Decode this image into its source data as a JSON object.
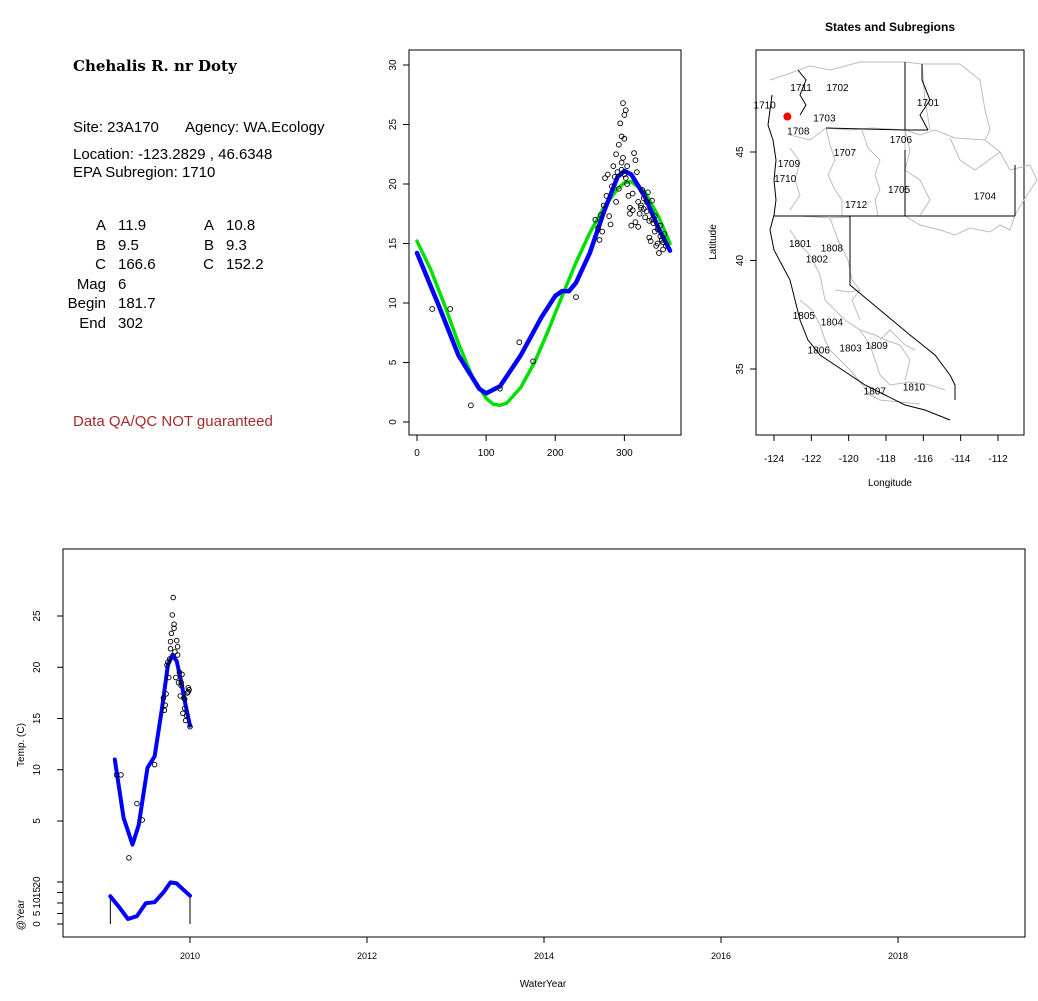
{
  "info": {
    "title": "Chehalis R. nr Doty",
    "site_line": "Site: 23A170",
    "agency_line": "Agency: WA.Ecology",
    "location_line": "Location: -123.2829 , 46.6348",
    "subregion_line": "EPA Subregion: 1710",
    "params": [
      {
        "k1": "A",
        "v1": "11.9",
        "k2": "A",
        "v2": "10.8"
      },
      {
        "k1": "B",
        "v1": "9.5",
        "k2": "B",
        "v2": "9.3"
      },
      {
        "k1": "C",
        "v1": "166.6",
        "k2": "C",
        "v2": "152.2"
      },
      {
        "k1": "Mag",
        "v1": "6",
        "k2": "",
        "v2": ""
      },
      {
        "k1": "Begin",
        "v1": "181.7",
        "k2": "",
        "v2": ""
      },
      {
        "k1": "End",
        "v1": "302",
        "k2": "",
        "v2": ""
      }
    ],
    "qa_note": "Data QA/QC NOT guaranteed"
  },
  "colors": {
    "blue": "#0000ff",
    "green": "#00e000",
    "red": "#ff0000",
    "qa": "#a52a2a",
    "boundary": "#bdbdbd"
  },
  "chart_data": [
    {
      "id": "seasonal",
      "type": "scatter",
      "xlim": [
        0,
        366
      ],
      "ylim": [
        0,
        30
      ],
      "xticks": [
        0,
        100,
        200,
        300
      ],
      "yticks": [
        0,
        5,
        10,
        15,
        20,
        25,
        30
      ],
      "points_x": [
        22,
        48,
        78,
        120,
        148,
        168,
        230,
        258,
        262,
        264,
        266,
        268,
        270,
        272,
        274,
        276,
        278,
        280,
        282,
        284,
        286,
        288,
        290,
        292,
        294,
        296,
        298,
        300,
        302,
        304,
        306,
        308,
        310,
        312,
        314,
        316,
        318,
        320,
        322,
        324,
        326,
        328,
        330,
        332,
        334,
        336,
        338,
        340,
        342,
        344,
        346,
        348,
        350,
        352,
        354,
        356,
        358,
        360,
        288,
        292,
        296,
        300,
        304,
        308,
        312,
        316,
        320,
        324,
        328,
        332,
        336,
        340,
        344,
        348,
        352,
        356,
        296,
        298,
        300,
        302
      ],
      "points_y": [
        9.5,
        9.5,
        1.4,
        2.8,
        6.7,
        5.1,
        10.5,
        17.0,
        16.3,
        15.3,
        17.4,
        16.0,
        18.2,
        20.5,
        19.0,
        20.8,
        17.3,
        16.6,
        19.8,
        21.5,
        20.6,
        22.5,
        21.0,
        23.3,
        25.1,
        24.0,
        26.8,
        23.8,
        20.5,
        21.5,
        19.0,
        17.5,
        16.5,
        19.2,
        22.6,
        22.0,
        21.0,
        18.5,
        17.5,
        18.0,
        19.5,
        18.8,
        17.2,
        18.5,
        19.3,
        15.5,
        15.2,
        17.0,
        16.7,
        16.0,
        14.8,
        15.0,
        14.2,
        16.5,
        15.3,
        14.5,
        15.8,
        14.8,
        18.5,
        19.6,
        21.8,
        20.8,
        20.0,
        18.0,
        17.8,
        16.8,
        16.4,
        18.2,
        17.9,
        17.7,
        16.9,
        18.6,
        17.3,
        16.2,
        15.6,
        15.1,
        21.2,
        22.2,
        25.8,
        26.2
      ],
      "curve_blue": {
        "x": [
          0,
          30,
          60,
          90,
          100,
          120,
          150,
          180,
          200,
          210,
          220,
          230,
          250,
          270,
          290,
          300,
          310,
          330,
          350,
          366
        ],
        "y": [
          14.2,
          10.0,
          5.6,
          2.8,
          2.4,
          3.0,
          5.6,
          8.8,
          10.6,
          11.0,
          11.0,
          11.7,
          14.2,
          17.6,
          20.6,
          21.1,
          20.8,
          18.9,
          16.2,
          14.4
        ]
      },
      "curve_green": {
        "x": [
          0,
          20,
          40,
          60,
          80,
          100,
          110,
          120,
          130,
          150,
          170,
          190,
          210,
          230,
          250,
          270,
          290,
          300,
          310,
          330,
          350,
          366
        ],
        "y": [
          15.2,
          12.8,
          9.8,
          6.6,
          3.8,
          2.0,
          1.5,
          1.4,
          1.6,
          2.9,
          5.0,
          7.7,
          10.6,
          13.4,
          15.9,
          18.0,
          19.6,
          20.1,
          20.2,
          19.3,
          17.2,
          15.0
        ]
      }
    },
    {
      "id": "map",
      "type": "map",
      "title": "States and Subregions",
      "xlabel": "Longitude",
      "ylabel": "Latitude",
      "xlim": [
        -125.5,
        -110.5
      ],
      "ylim": [
        32.2,
        49.5
      ],
      "xticks": [
        -124,
        -122,
        -120,
        -118,
        -116,
        -114,
        -112
      ],
      "yticks": [
        35,
        40,
        45
      ],
      "site": {
        "lon": -123.2829,
        "lat": 46.6348
      },
      "labels": [
        {
          "text": "1711",
          "lon": -122.55,
          "lat": 48.0
        },
        {
          "text": "1702",
          "lon": -120.6,
          "lat": 48.0
        },
        {
          "text": "1701",
          "lon": -115.75,
          "lat": 47.3
        },
        {
          "text": "1710",
          "lon": -124.5,
          "lat": 47.2
        },
        {
          "text": "1703",
          "lon": -121.3,
          "lat": 46.6
        },
        {
          "text": "1708",
          "lon": -122.7,
          "lat": 46.0
        },
        {
          "text": "1706",
          "lon": -117.2,
          "lat": 45.6
        },
        {
          "text": "1707",
          "lon": -120.2,
          "lat": 45.0
        },
        {
          "text": "1709",
          "lon": -123.2,
          "lat": 44.5
        },
        {
          "text": "1710",
          "lon": -123.4,
          "lat": 43.8
        },
        {
          "text": "1705",
          "lon": -117.3,
          "lat": 43.3
        },
        {
          "text": "1704",
          "lon": -112.7,
          "lat": 43.0
        },
        {
          "text": "1712",
          "lon": -119.6,
          "lat": 42.6
        },
        {
          "text": "1801",
          "lon": -122.6,
          "lat": 40.8
        },
        {
          "text": "1808",
          "lon": -120.9,
          "lat": 40.6
        },
        {
          "text": "1802",
          "lon": -121.7,
          "lat": 40.1
        },
        {
          "text": "1805",
          "lon": -122.4,
          "lat": 37.5
        },
        {
          "text": "1804",
          "lon": -120.9,
          "lat": 37.2
        },
        {
          "text": "1806",
          "lon": -121.6,
          "lat": 35.9
        },
        {
          "text": "1803",
          "lon": -119.9,
          "lat": 36.0
        },
        {
          "text": "1809",
          "lon": -118.5,
          "lat": 36.1
        },
        {
          "text": "1807",
          "lon": -118.6,
          "lat": 34.0
        },
        {
          "text": "1810",
          "lon": -116.5,
          "lat": 34.2
        }
      ]
    },
    {
      "id": "timeseries",
      "type": "line",
      "xlabel": "WaterYear",
      "ylabel": "Temp. (C)",
      "ylabel2": "@Year",
      "xlim": [
        2008.6,
        2019.45
      ],
      "xticks": [
        2010,
        2012,
        2014,
        2016,
        2018
      ],
      "yticks": [
        5,
        10,
        15,
        20,
        25
      ],
      "yticks2": [
        0,
        5,
        10,
        15,
        20
      ],
      "ylim": [
        1.5,
        30
      ],
      "curve_temp": {
        "x": [
          2009.15,
          2009.25,
          2009.35,
          2009.42,
          2009.52,
          2009.6,
          2009.68,
          2009.75,
          2009.8,
          2009.85,
          2009.9,
          2009.95,
          2010.0
        ],
        "y": [
          11.0,
          5.3,
          2.7,
          4.6,
          10.2,
          11.3,
          15.8,
          20.2,
          21.2,
          20.6,
          18.6,
          16.3,
          14.3
        ]
      },
      "points_x": [
        2009.17,
        2009.22,
        2009.31,
        2009.4,
        2009.46,
        2009.6,
        2009.7,
        2009.72,
        2009.73,
        2009.75,
        2009.76,
        2009.77,
        2009.78,
        2009.79,
        2009.8,
        2009.81,
        2009.82,
        2009.83,
        2009.84,
        2009.85,
        2009.86,
        2009.87,
        2009.88,
        2009.89,
        2009.9,
        2009.91,
        2009.92,
        2009.93,
        2009.94,
        2009.95,
        2009.96,
        2009.97,
        2009.98,
        2009.99,
        2010.0,
        2009.71,
        2009.74,
        2009.78,
        2009.82,
        2009.86,
        2009.9,
        2009.94,
        2009.98
      ],
      "points_y": [
        9.5,
        9.5,
        1.4,
        6.7,
        5.1,
        10.5,
        17.0,
        16.3,
        17.4,
        20.5,
        19.0,
        20.8,
        22.5,
        23.3,
        25.1,
        26.8,
        23.8,
        21.5,
        19.0,
        22.6,
        22.0,
        18.5,
        19.5,
        17.2,
        18.5,
        19.3,
        15.5,
        17.0,
        16.0,
        14.8,
        15.3,
        17.5,
        18.0,
        17.8,
        14.2,
        15.8,
        20.2,
        21.8,
        24.2,
        21.2,
        18.2,
        16.9,
        17.6
      ],
      "curve_year": {
        "x": [
          2009.1,
          2009.2,
          2009.3,
          2009.4,
          2009.5,
          2009.6,
          2009.7,
          2009.78,
          2009.85,
          2009.92,
          2010.0
        ],
        "y": [
          14.0,
          8.5,
          2.5,
          4.0,
          10.5,
          11.0,
          16.0,
          21.0,
          20.5,
          17.5,
          14.3
        ]
      }
    }
  ]
}
